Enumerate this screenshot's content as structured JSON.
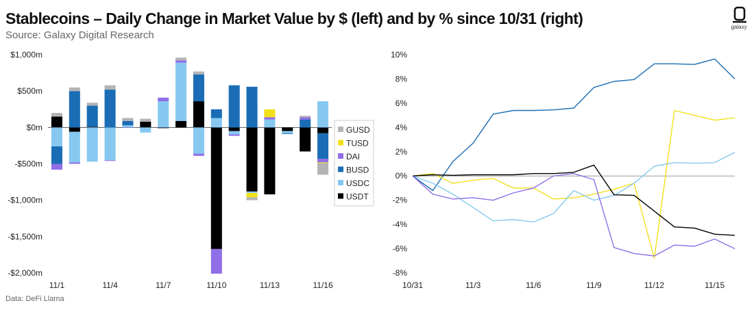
{
  "header": {
    "title": "Stablecoins – Daily Change in Market Value by $ (left) and by % since 10/31 (right)",
    "subtitle": "Source: Galaxy Digital Research",
    "footnote": "Data: DeFi Llama",
    "logo_text": "galaxy"
  },
  "colors": {
    "GUSD": "#b4b4b4",
    "TUSD": "#f2e01a",
    "DAI": "#8f6ee8",
    "BUSD": "#1a6db5",
    "USDC": "#86c8f0",
    "USDT": "#000000"
  },
  "chart_data": [
    {
      "type": "bar",
      "stacked": true,
      "title": "Daily Change in Market Value by $",
      "categories": [
        "11/1",
        "11/2",
        "11/3",
        "11/4",
        "11/5",
        "11/6",
        "11/7",
        "11/8",
        "11/9",
        "11/10",
        "11/11",
        "11/12",
        "11/13",
        "11/14",
        "11/15",
        "11/16"
      ],
      "x_tick_labels": [
        "11/1",
        "",
        "",
        "11/4",
        "",
        "",
        "11/7",
        "",
        "",
        "11/10",
        "",
        "",
        "11/13",
        "",
        "",
        "11/16"
      ],
      "ylim": [
        -2000,
        1000
      ],
      "y_ticks": [
        1000,
        500,
        0,
        -500,
        -1000,
        -1500,
        -2000
      ],
      "y_tick_labels": [
        "$1,000m",
        "$500m",
        "$0m",
        "-$500m",
        "-$1,000m",
        "-$1,500m",
        "-$2,000m"
      ],
      "legend": [
        "GUSD",
        "TUSD",
        "DAI",
        "BUSD",
        "USDC",
        "USDT"
      ],
      "legend_position": "right",
      "series": [
        {
          "name": "USDT",
          "values": [
            150,
            -60,
            10,
            0,
            0,
            80,
            -10,
            90,
            360,
            -1670,
            -50,
            -880,
            -920,
            -50,
            -330,
            -80
          ]
        },
        {
          "name": "USDC",
          "values": [
            -260,
            -420,
            -470,
            -450,
            30,
            -70,
            360,
            800,
            -360,
            130,
            -45,
            -20,
            110,
            -30,
            0,
            360
          ]
        },
        {
          "name": "BUSD",
          "values": [
            -240,
            500,
            290,
            520,
            60,
            0,
            0,
            0,
            370,
            120,
            580,
            560,
            0,
            -10,
            110,
            -350
          ]
        },
        {
          "name": "DAI",
          "values": [
            -80,
            -20,
            0,
            -10,
            -5,
            0,
            50,
            30,
            -30,
            -340,
            -20,
            0,
            30,
            0,
            30,
            -50
          ]
        },
        {
          "name": "TUSD",
          "values": [
            0,
            0,
            0,
            0,
            0,
            0,
            0,
            0,
            0,
            0,
            0,
            -60,
            110,
            0,
            0,
            -10
          ]
        },
        {
          "name": "GUSD",
          "values": [
            50,
            50,
            40,
            60,
            40,
            40,
            0,
            40,
            40,
            0,
            0,
            -40,
            0,
            0,
            20,
            -160
          ]
        }
      ]
    },
    {
      "type": "line",
      "title": "Change by % since 10/31",
      "x": [
        "10/31",
        "11/1",
        "11/2",
        "11/3",
        "11/4",
        "11/5",
        "11/6",
        "11/7",
        "11/8",
        "11/9",
        "11/10",
        "11/11",
        "11/12",
        "11/13",
        "11/14",
        "11/15",
        "11/16"
      ],
      "x_tick_labels": [
        "10/31",
        "",
        "",
        "11/3",
        "",
        "",
        "11/6",
        "",
        "",
        "11/9",
        "",
        "",
        "11/12",
        "",
        "",
        "11/15",
        ""
      ],
      "ylim": [
        -8,
        10
      ],
      "y_ticks": [
        10,
        8,
        6,
        4,
        2,
        0,
        -2,
        -4,
        -6,
        -8
      ],
      "y_tick_labels": [
        "10%",
        "8%",
        "6%",
        "4%",
        "2%",
        "0%",
        "-2%",
        "-4%",
        "-6%",
        "-8%"
      ],
      "series": [
        {
          "name": "BUSD",
          "values": [
            0,
            -1.2,
            1.2,
            2.7,
            5.1,
            5.4,
            5.4,
            5.45,
            5.6,
            7.3,
            7.8,
            7.95,
            9.25,
            9.25,
            9.2,
            9.65,
            8.0
          ]
        },
        {
          "name": "TUSD",
          "values": [
            0,
            0.2,
            -0.6,
            -0.35,
            -0.2,
            -1.0,
            -1.0,
            -1.9,
            -1.8,
            -1.5,
            -1.1,
            -0.6,
            -6.8,
            5.4,
            5.0,
            4.6,
            4.8
          ]
        },
        {
          "name": "USDC",
          "values": [
            0,
            -0.6,
            -1.5,
            -2.6,
            -3.7,
            -3.6,
            -3.8,
            -3.1,
            -1.2,
            -2.0,
            -1.6,
            -0.6,
            0.8,
            1.1,
            1.05,
            1.1,
            1.95
          ]
        },
        {
          "name": "USDT",
          "values": [
            0,
            0.1,
            0.05,
            0.1,
            0.1,
            0.1,
            0.2,
            0.2,
            0.3,
            0.9,
            -1.55,
            -1.6,
            -2.9,
            -4.2,
            -4.3,
            -4.8,
            -4.9
          ]
        },
        {
          "name": "DAI",
          "values": [
            0,
            -1.5,
            -1.9,
            -1.8,
            -2.0,
            -1.4,
            -1.0,
            0.0,
            0.2,
            -0.3,
            -5.9,
            -6.4,
            -6.6,
            -5.7,
            -5.8,
            -5.2,
            -6.0
          ]
        }
      ]
    }
  ]
}
